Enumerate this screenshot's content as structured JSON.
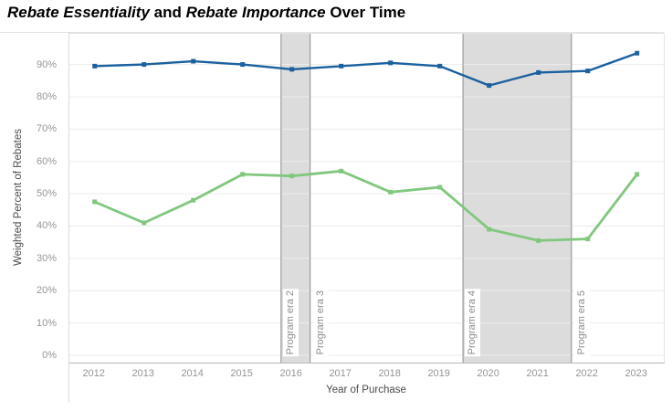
{
  "title": {
    "parts": [
      {
        "text": "Rebate Essentiality",
        "italic": true
      },
      {
        "text": " and ",
        "italic": false
      },
      {
        "text": "Rebate Importance",
        "italic": true
      },
      {
        "text": " Over Time",
        "italic": false
      }
    ]
  },
  "chart_data": {
    "type": "line",
    "title": "Rebate Essentiality and Rebate Importance Over Time",
    "x": [
      2012,
      2013,
      2014,
      2015,
      2016,
      2017,
      2018,
      2019,
      2020,
      2021,
      2022,
      2023
    ],
    "xlabel": "Year of Purchase",
    "ylabel": "Weighted Percent of Rebates",
    "ylim": [
      0,
      100
    ],
    "yticks": [
      0,
      10,
      20,
      30,
      40,
      50,
      60,
      70,
      80,
      90
    ],
    "ytick_suffix": "%",
    "grid": "horizontal-only",
    "legend": "none",
    "marker": "square",
    "series": [
      {
        "name": "blue",
        "color": "#1b609f",
        "values": [
          89.5,
          90,
          91,
          90,
          88.5,
          89.5,
          90.5,
          89.5,
          83.5,
          87.5,
          88,
          93.5
        ]
      },
      {
        "name": "green",
        "color": "#81c77d",
        "values": [
          47.5,
          41,
          48,
          56,
          55.5,
          57,
          50.5,
          52,
          39,
          35.5,
          36,
          56
        ]
      }
    ],
    "era_bands": [
      {
        "label": "Program era 2",
        "x_start": 2015.78,
        "x_end": 2016.37,
        "fill": "#dcdcdc"
      },
      {
        "label": "Program era 4",
        "x_start": 2019.47,
        "x_end": 2021.67,
        "fill": "#dcdcdc"
      }
    ],
    "era_lines": [
      {
        "label": "Program era 3",
        "x": 2016.37
      },
      {
        "label": "Program era 5",
        "x": 2021.67
      }
    ],
    "colors": {
      "gridline": "#ececec",
      "band_edge": "#8b8b8b",
      "axis_text": "#959595",
      "axis_title": "#4b4b4b",
      "plot_border": "#b9b9b9",
      "frame": "#e4e4e4"
    }
  }
}
